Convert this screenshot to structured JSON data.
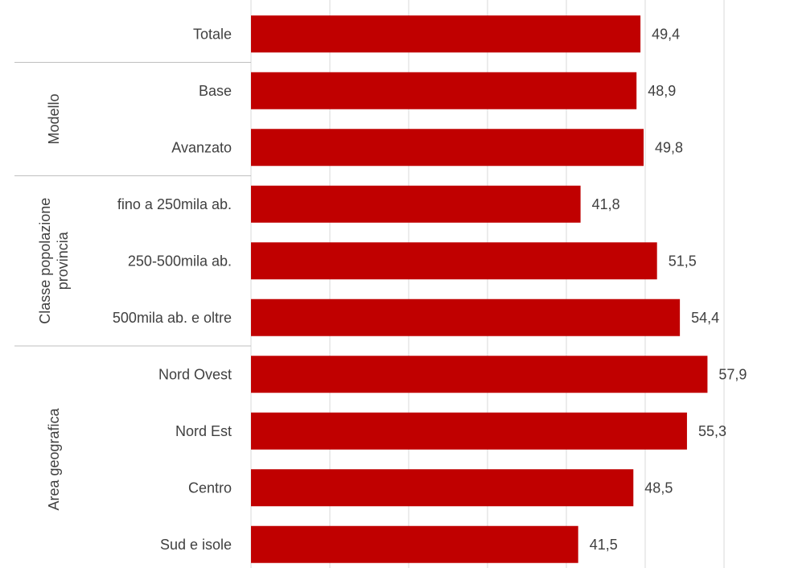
{
  "chart_data": {
    "type": "bar",
    "orientation": "horizontal",
    "title": "",
    "xlabel": "",
    "ylabel": "",
    "xlim": [
      0,
      60
    ],
    "grid": true,
    "legend": "none",
    "bar_color": "#C00000",
    "categories": [
      "Totale",
      "Base",
      "Avanzato",
      "fino a 250mila ab.",
      "250-500mila ab.",
      "500mila ab. e oltre",
      "Nord Ovest",
      "Nord Est",
      "Centro",
      "Sud e isole"
    ],
    "values": [
      49.4,
      48.9,
      49.8,
      41.8,
      51.5,
      54.4,
      57.9,
      55.3,
      48.5,
      41.5
    ],
    "value_labels": [
      "49,4",
      "48,9",
      "49,8",
      "41,8",
      "51,5",
      "54,4",
      "57,9",
      "55,3",
      "48,5",
      "41,5"
    ],
    "groups": [
      {
        "label_lines": [],
        "start": 0,
        "end": 0
      },
      {
        "label_lines": [
          "Modello"
        ],
        "start": 1,
        "end": 2
      },
      {
        "label_lines": [
          "Classe popolazione",
          "provincia"
        ],
        "start": 3,
        "end": 5
      },
      {
        "label_lines": [
          "Area geografica"
        ],
        "start": 6,
        "end": 9
      }
    ]
  }
}
